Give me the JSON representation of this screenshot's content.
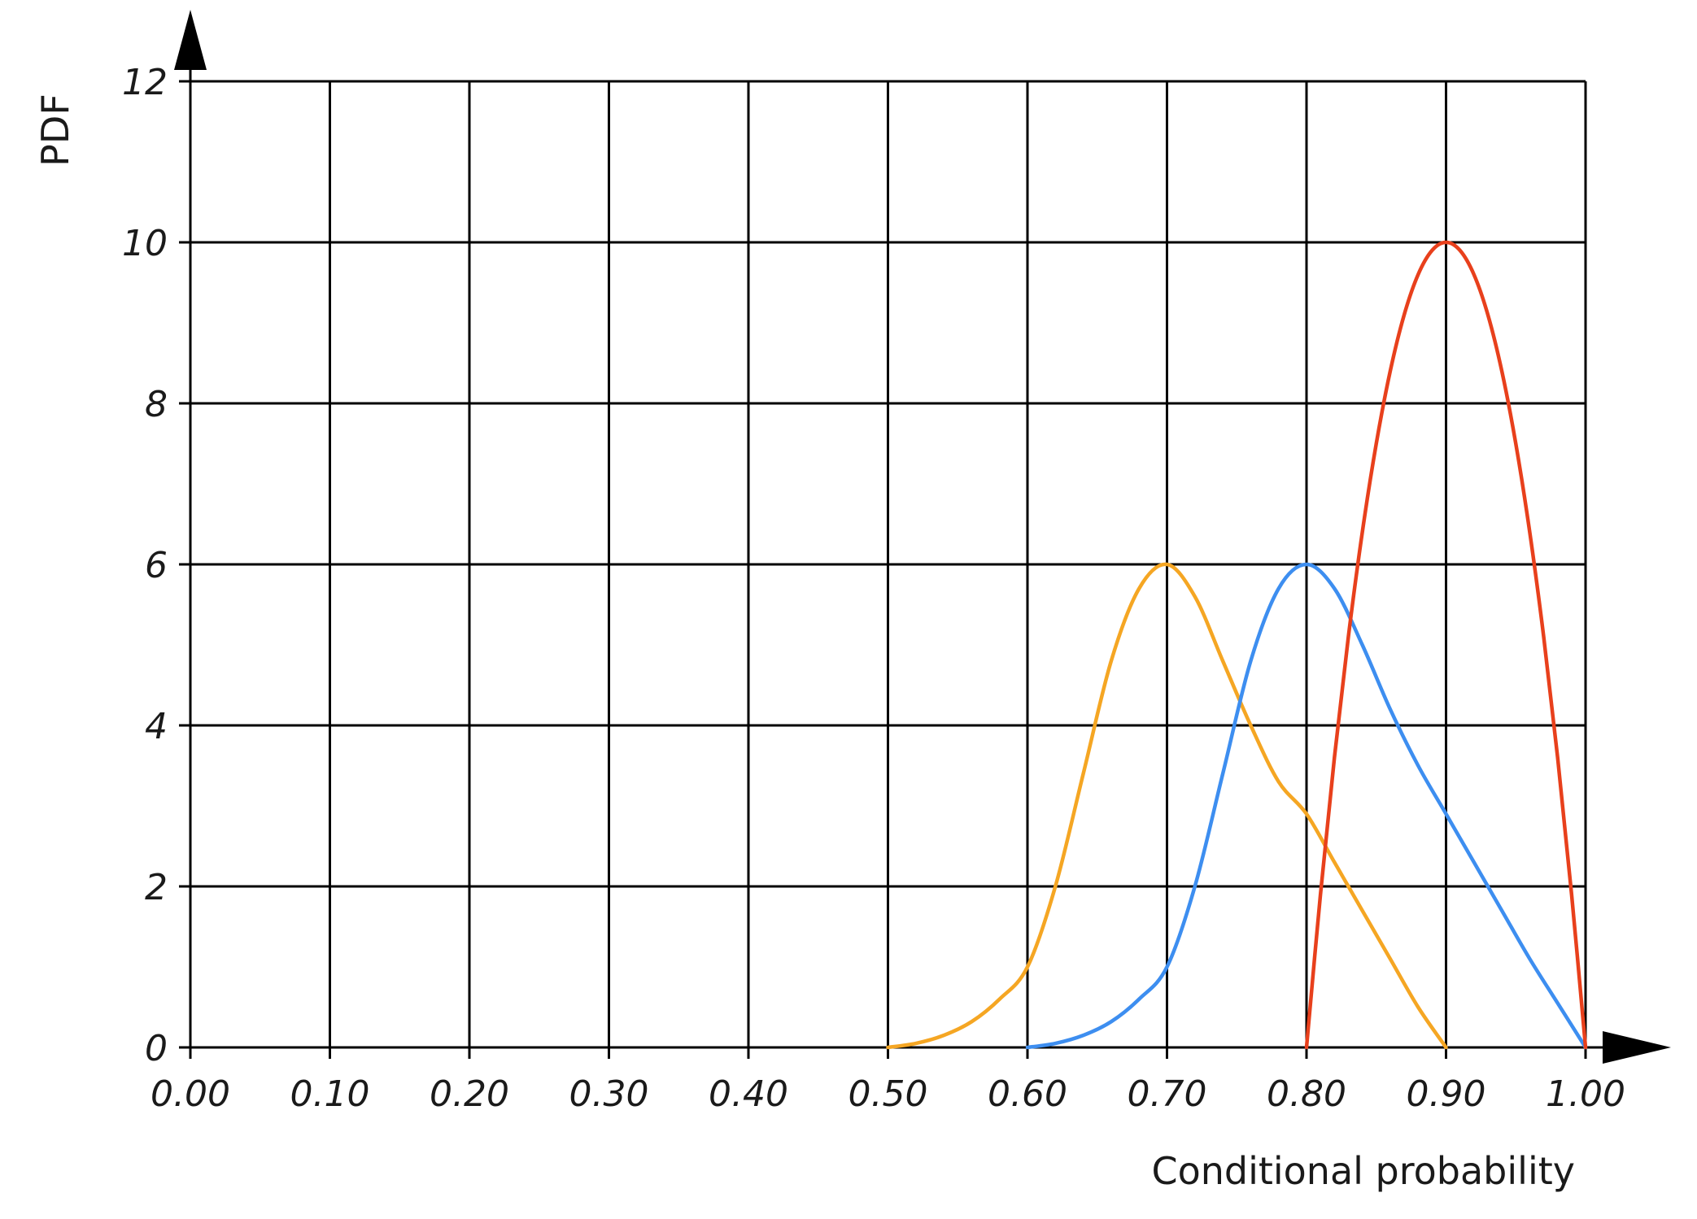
{
  "chart_data": {
    "type": "line",
    "title": "",
    "xlabel": "Conditional probability",
    "ylabel": "PDF",
    "xlim": [
      0,
      1
    ],
    "ylim": [
      0,
      12
    ],
    "grid": true,
    "legend": "none",
    "x_ticks": [
      "0.00",
      "0.10",
      "0.20",
      "0.30",
      "0.40",
      "0.50",
      "0.60",
      "0.70",
      "0.80",
      "0.90",
      "1.00"
    ],
    "y_ticks": [
      "0",
      "2",
      "4",
      "6",
      "8",
      "10",
      "12"
    ],
    "series": [
      {
        "color": "#f5a623",
        "x": [
          0.5,
          0.52,
          0.54,
          0.56,
          0.58,
          0.6,
          0.62,
          0.64,
          0.66,
          0.68,
          0.7,
          0.72,
          0.74,
          0.76,
          0.78,
          0.8,
          0.82,
          0.84,
          0.86,
          0.88,
          0.9
        ],
        "y": [
          0.0,
          0.05,
          0.15,
          0.32,
          0.6,
          1.0,
          2.0,
          3.4,
          4.8,
          5.7,
          6.0,
          5.6,
          4.8,
          4.0,
          3.3,
          2.9,
          2.3,
          1.7,
          1.1,
          0.5,
          0.0
        ]
      },
      {
        "color": "#3d8ef0",
        "x": [
          0.6,
          0.62,
          0.64,
          0.66,
          0.68,
          0.7,
          0.72,
          0.74,
          0.76,
          0.78,
          0.8,
          0.82,
          0.84,
          0.86,
          0.88,
          0.9,
          0.92,
          0.94,
          0.96,
          0.98,
          1.0
        ],
        "y": [
          0.0,
          0.05,
          0.15,
          0.32,
          0.6,
          1.0,
          2.0,
          3.4,
          4.8,
          5.7,
          6.0,
          5.7,
          5.0,
          4.2,
          3.5,
          2.9,
          2.3,
          1.7,
          1.1,
          0.55,
          0.0
        ]
      },
      {
        "color": "#e8401c",
        "x": [
          0.8,
          0.81,
          0.82,
          0.83,
          0.84,
          0.85,
          0.86,
          0.87,
          0.88,
          0.89,
          0.9,
          0.91,
          0.92,
          0.93,
          0.94,
          0.95,
          0.96,
          0.97,
          0.98,
          0.99,
          1.0
        ],
        "y": [
          0.0,
          1.9,
          3.6,
          5.1,
          6.4,
          7.5,
          8.4,
          9.1,
          9.6,
          9.9,
          10.0,
          9.9,
          9.6,
          9.1,
          8.4,
          7.5,
          6.4,
          5.1,
          3.6,
          1.9,
          0.0
        ]
      }
    ]
  }
}
